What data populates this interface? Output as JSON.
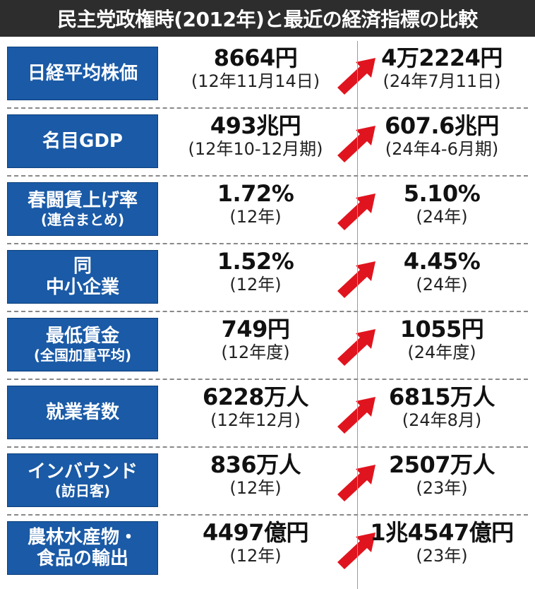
{
  "title": "民主党政権時(2012年)と最近の経済指標の比較",
  "colors": {
    "title_bg": "#2d2d2d",
    "label_bg": "#1a5aa6",
    "arrow": "#e0141e"
  },
  "rows": [
    {
      "label": "日経平均株価",
      "label_sub": "",
      "before": "8664円",
      "before_date": "(12年11月14日)",
      "after": "4万2224円",
      "after_date": "(24年7月11日)"
    },
    {
      "label": "名目GDP",
      "label_sub": "",
      "before": "493兆円",
      "before_date": "(12年10-12月期)",
      "after": "607.6兆円",
      "after_date": "(24年4-6月期)"
    },
    {
      "label": "春闘賃上げ率",
      "label_sub": "(連合まとめ)",
      "before": "1.72%",
      "before_date": "(12年)",
      "after": "5.10%",
      "after_date": "(24年)"
    },
    {
      "label": "同",
      "label_sub": "中小企業",
      "before": "1.52%",
      "before_date": "(12年)",
      "after": "4.45%",
      "after_date": "(24年)"
    },
    {
      "label": "最低賃金",
      "label_sub": "(全国加重平均)",
      "before": "749円",
      "before_date": "(12年度)",
      "after": "1055円",
      "after_date": "(24年度)"
    },
    {
      "label": "就業者数",
      "label_sub": "",
      "before": "6228万人",
      "before_date": "(12年12月)",
      "after": "6815万人",
      "after_date": "(24年8月)"
    },
    {
      "label": "インバウンド",
      "label_sub": "(訪日客)",
      "before": "836万人",
      "before_date": "(12年)",
      "after": "2507万人",
      "after_date": "(23年)"
    },
    {
      "label": "農林水産物・",
      "label_sub": "食品の輸出",
      "before": "4497億円",
      "before_date": "(12年)",
      "after": "1兆4547億円",
      "after_date": "(23年)"
    }
  ]
}
